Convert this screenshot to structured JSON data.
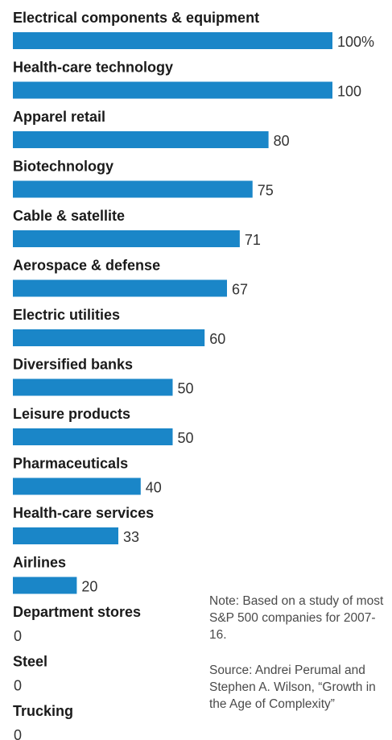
{
  "chart_data": {
    "type": "bar",
    "orientation": "horizontal",
    "categories": [
      "Electrical components & equipment",
      "Health-care technology",
      "Apparel retail",
      "Biotechnology",
      "Cable & satellite",
      "Aerospace & defense",
      "Electric utilities",
      "Diversified banks",
      "Leisure products",
      "Pharmaceuticals",
      "Health-care services",
      "Airlines",
      "Department stores",
      "Steel",
      "Trucking"
    ],
    "values": [
      100,
      100,
      80,
      75,
      71,
      67,
      60,
      50,
      50,
      40,
      33,
      20,
      0,
      0,
      0
    ],
    "value_labels": [
      "100%",
      "100",
      "80",
      "75",
      "71",
      "67",
      "60",
      "50",
      "50",
      "40",
      "33",
      "20",
      "0",
      "0",
      "0"
    ],
    "xlim": [
      0,
      100
    ],
    "bar_color": "#1a86c8",
    "grid": false,
    "legend": "none"
  },
  "note": "Note: Based on a study of most S&P 500 companies for 2007-16.",
  "source": "Source: Andrei Perumal and Stephen A. Wilson, “Growth in the Age of Complexity”"
}
